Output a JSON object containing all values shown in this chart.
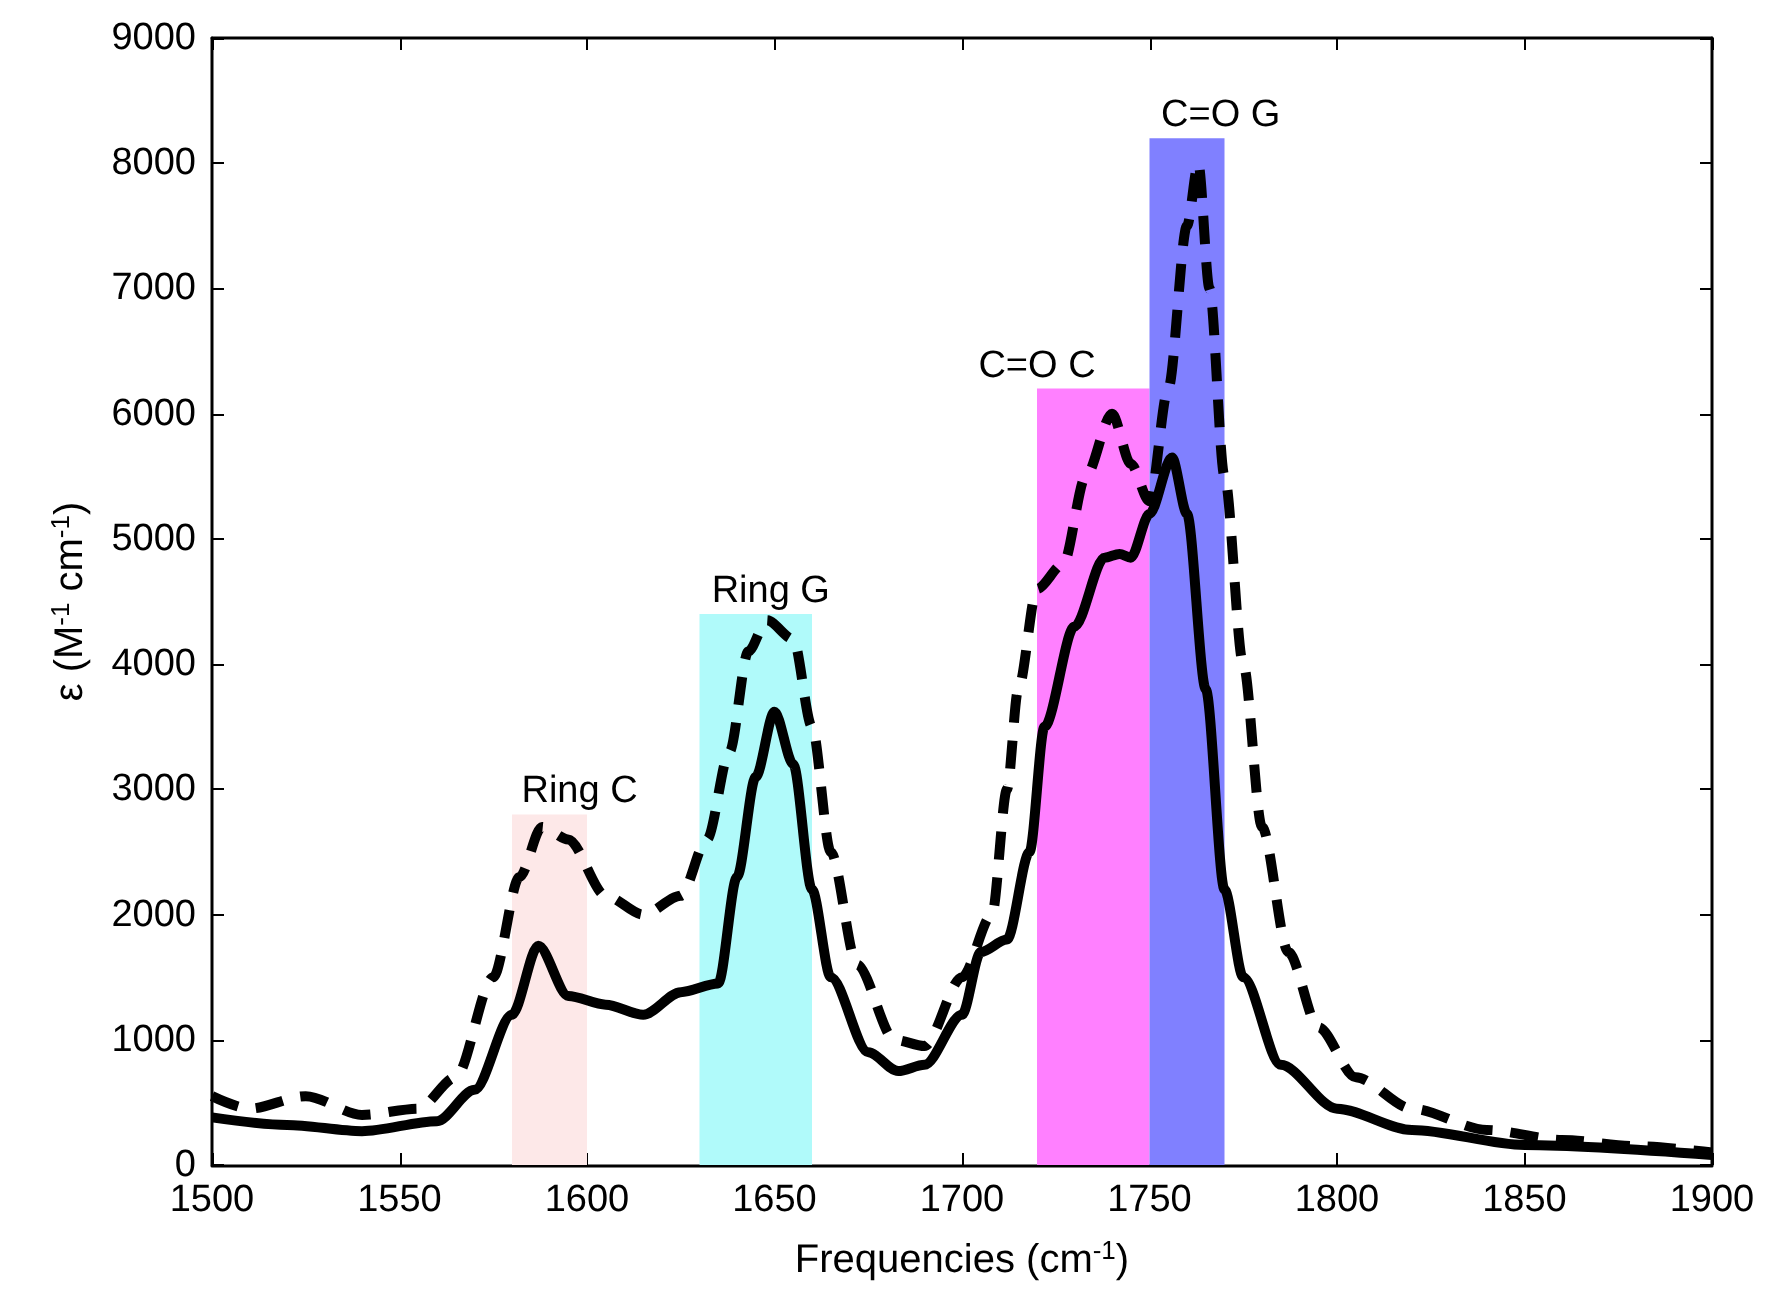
{
  "chart_data": {
    "type": "line",
    "xlabel": "Frequencies (cm$^{-1}$)",
    "ylabel": "ε (M$^{-1}$ cm$^{-1}$)",
    "xlim": [
      1500,
      1900
    ],
    "xticks": [
      1500,
      1550,
      1600,
      1650,
      1700,
      1750,
      1800,
      1850,
      1900
    ],
    "ylim": [
      0,
      9000
    ],
    "yticks": [
      0,
      1000,
      2000,
      3000,
      4000,
      5000,
      6000,
      7000,
      8000,
      9000
    ],
    "grid": false,
    "marker": "none",
    "series": [
      {
        "color": "#000000",
        "line_style": "solid",
        "x": [
          1500,
          1520,
          1540,
          1560,
          1570,
          1580,
          1587,
          1595,
          1605,
          1615,
          1625,
          1635,
          1640,
          1645,
          1650,
          1655,
          1660,
          1665,
          1675,
          1683,
          1690,
          1700,
          1705,
          1712,
          1718,
          1722,
          1730,
          1738,
          1742,
          1745,
          1750,
          1756,
          1760,
          1765,
          1770,
          1775,
          1785,
          1800,
          1820,
          1850,
          1900
        ],
        "values": [
          380,
          320,
          270,
          350,
          600,
          1200,
          1750,
          1350,
          1280,
          1200,
          1380,
          1450,
          2300,
          3100,
          3620,
          3200,
          2200,
          1500,
          900,
          750,
          800,
          1200,
          1700,
          1800,
          2500,
          3500,
          4300,
          4850,
          4880,
          4850,
          5200,
          5650,
          5200,
          3800,
          2200,
          1500,
          800,
          450,
          280,
          160,
          80
        ]
      },
      {
        "color": "#000000",
        "line_style": "dashed",
        "x": [
          1500,
          1510,
          1525,
          1540,
          1555,
          1565,
          1575,
          1582,
          1588,
          1595,
          1605,
          1615,
          1625,
          1632,
          1638,
          1643,
          1648,
          1655,
          1660,
          1665,
          1672,
          1682,
          1690,
          1700,
          1708,
          1712,
          1715,
          1720,
          1727,
          1733,
          1740,
          1745,
          1750,
          1755,
          1760,
          1763,
          1766,
          1770,
          1775,
          1780,
          1787,
          1795,
          1805,
          1820,
          1840,
          1860,
          1880,
          1900
        ],
        "values": [
          550,
          450,
          550,
          400,
          450,
          700,
          1500,
          2300,
          2700,
          2600,
          2150,
          2000,
          2150,
          2600,
          3300,
          4100,
          4350,
          4200,
          3500,
          2500,
          1600,
          1000,
          950,
          1500,
          2000,
          3000,
          3800,
          4600,
          4800,
          5500,
          6000,
          5600,
          5300,
          6200,
          7500,
          8000,
          7000,
          5500,
          4000,
          2700,
          1700,
          1100,
          700,
          450,
          280,
          200,
          150,
          100
        ]
      }
    ],
    "bands": [
      {
        "axis": "x",
        "from": 1580,
        "to": 1600,
        "color": "#fde8e8"
      },
      {
        "axis": "x",
        "from": 1630,
        "to": 1660,
        "color": "#b0fafa"
      },
      {
        "axis": "x",
        "from": 1720,
        "to": 1750,
        "color": "#ff80ff"
      },
      {
        "axis": "x",
        "from": 1750,
        "to": 1770,
        "color": "#8080ff"
      }
    ],
    "annotations": [
      {
        "text": "Ring C",
        "x": 1598,
        "y": 2800
      },
      {
        "text": "Ring G",
        "x": 1649,
        "y": 4400
      },
      {
        "text": "C=O C",
        "x": 1720,
        "y": 6200
      },
      {
        "text": "C=O G",
        "x": 1769,
        "y": 8200
      }
    ]
  }
}
